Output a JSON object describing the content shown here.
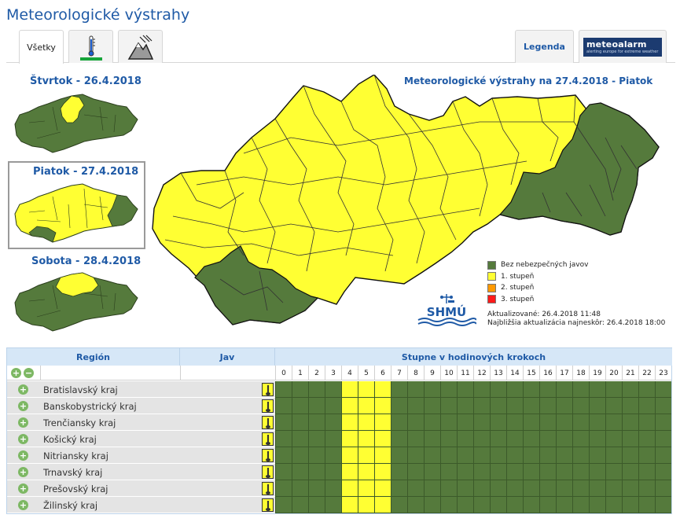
{
  "page": {
    "title": "Meteorologické výstrahy"
  },
  "tabs": {
    "all_label": "Všetky",
    "temperature_icon": "thermometer-icon",
    "wind_icon": "wind-icon",
    "legend_label": "Legenda",
    "meteoalarm_logo": "meteoalarm",
    "meteoalarm_tagline": "alerting europe for extreme weather"
  },
  "days": [
    {
      "label": "Štvrtok - 26.4.2018"
    },
    {
      "label": "Piatok - 27.4.2018"
    },
    {
      "label": "Sobota - 28.4.2018"
    }
  ],
  "main_map": {
    "title": "Meteorologické výstrahy na 27.4.2018 - Piatok"
  },
  "legend": {
    "items": [
      {
        "label": "Bez nebezpečných javov",
        "color": "#557a3c"
      },
      {
        "label": "1. stupeň",
        "color": "#ffff33"
      },
      {
        "label": "2. stupeň",
        "color": "#ff9900"
      },
      {
        "label": "3. stupeň",
        "color": "#ff1a1a"
      }
    ]
  },
  "logo_text": "SHMÚ",
  "updated": "Aktualizované: 26.4.2018 11:48",
  "next_update": "Najbližšia aktualizácia najneskôr: 26.4.2018 18:00",
  "table": {
    "col_region": "Región",
    "col_phenomenon": "Jav",
    "col_steps": "Stupne v hodinových krokoch",
    "hours": [
      "0",
      "1",
      "2",
      "3",
      "4",
      "5",
      "6",
      "7",
      "8",
      "9",
      "10",
      "11",
      "12",
      "13",
      "14",
      "15",
      "16",
      "17",
      "18",
      "19",
      "20",
      "21",
      "22",
      "23"
    ],
    "rows": [
      {
        "region": "Bratislavský kraj",
        "phenomenon_icon": "thunderstorm-icon",
        "levels": [
          0,
          0,
          0,
          0,
          1,
          1,
          1,
          0,
          0,
          0,
          0,
          0,
          0,
          0,
          0,
          0,
          0,
          0,
          0,
          0,
          0,
          0,
          0,
          0
        ]
      },
      {
        "region": "Banskobystrický kraj",
        "phenomenon_icon": "thunderstorm-icon",
        "levels": [
          0,
          0,
          0,
          0,
          1,
          1,
          1,
          0,
          0,
          0,
          0,
          0,
          0,
          0,
          0,
          0,
          0,
          0,
          0,
          0,
          0,
          0,
          0,
          0
        ]
      },
      {
        "region": "Trenčiansky kraj",
        "phenomenon_icon": "thunderstorm-icon",
        "levels": [
          0,
          0,
          0,
          0,
          1,
          1,
          1,
          0,
          0,
          0,
          0,
          0,
          0,
          0,
          0,
          0,
          0,
          0,
          0,
          0,
          0,
          0,
          0,
          0
        ]
      },
      {
        "region": "Košický kraj",
        "phenomenon_icon": "thunderstorm-icon",
        "levels": [
          0,
          0,
          0,
          0,
          1,
          1,
          1,
          0,
          0,
          0,
          0,
          0,
          0,
          0,
          0,
          0,
          0,
          0,
          0,
          0,
          0,
          0,
          0,
          0
        ]
      },
      {
        "region": "Nitriansky kraj",
        "phenomenon_icon": "thunderstorm-icon",
        "levels": [
          0,
          0,
          0,
          0,
          1,
          1,
          1,
          0,
          0,
          0,
          0,
          0,
          0,
          0,
          0,
          0,
          0,
          0,
          0,
          0,
          0,
          0,
          0,
          0
        ]
      },
      {
        "region": "Trnavský kraj",
        "phenomenon_icon": "thunderstorm-icon",
        "levels": [
          0,
          0,
          0,
          0,
          1,
          1,
          1,
          0,
          0,
          0,
          0,
          0,
          0,
          0,
          0,
          0,
          0,
          0,
          0,
          0,
          0,
          0,
          0,
          0
        ]
      },
      {
        "region": "Prešovský kraj",
        "phenomenon_icon": "thunderstorm-icon",
        "levels": [
          0,
          0,
          0,
          0,
          1,
          1,
          1,
          0,
          0,
          0,
          0,
          0,
          0,
          0,
          0,
          0,
          0,
          0,
          0,
          0,
          0,
          0,
          0,
          0
        ]
      },
      {
        "region": "Žilinský kraj",
        "phenomenon_icon": "thunderstorm-icon",
        "levels": [
          0,
          0,
          0,
          0,
          1,
          1,
          1,
          0,
          0,
          0,
          0,
          0,
          0,
          0,
          0,
          0,
          0,
          0,
          0,
          0,
          0,
          0,
          0,
          0
        ]
      }
    ]
  }
}
